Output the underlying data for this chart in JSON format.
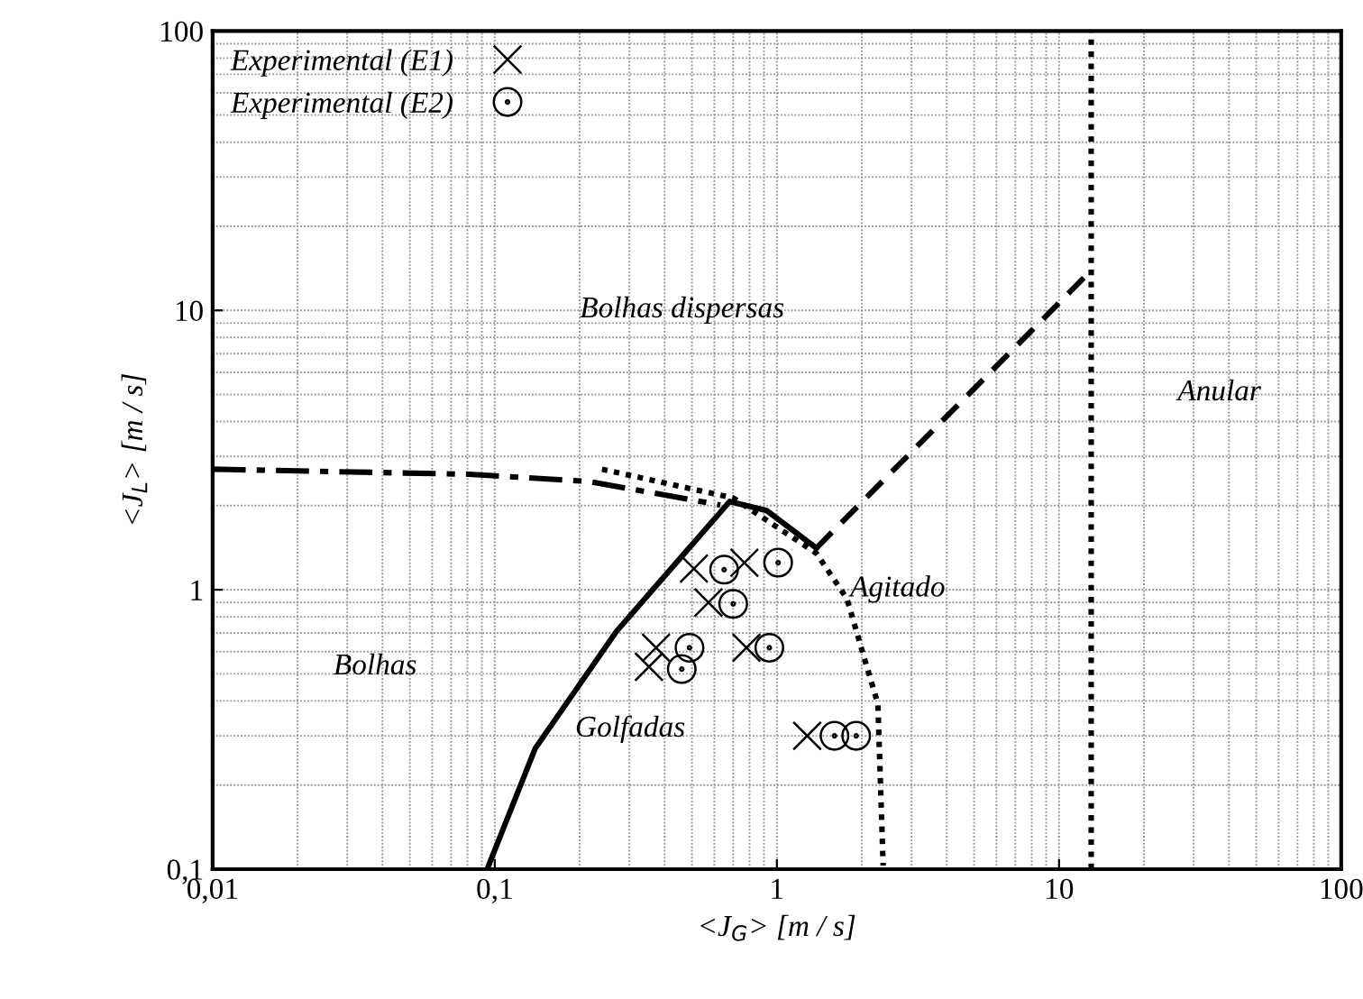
{
  "chart_data": {
    "type": "line",
    "xlabel": "<J$_{G}$> [m / s]",
    "ylabel": "<J$_{L}$> [m / s]",
    "log": "xy",
    "xlim": [
      0.01,
      100
    ],
    "ylim": [
      0.1,
      100
    ],
    "xticks": [
      {
        "value": 0.01,
        "label": "0,01"
      },
      {
        "value": 0.1,
        "label": "0,1"
      },
      1,
      10,
      100
    ],
    "yticks": [
      {
        "value": 0.1,
        "label": "0,1"
      },
      1,
      10,
      100
    ],
    "grid": true,
    "legend": "top left",
    "series": [
      {
        "color": "#000000",
        "line_style": "solid",
        "x": [
          0.094,
          0.139,
          0.27,
          0.68,
          0.92,
          1.38
        ],
        "values": [
          0.1,
          0.27,
          0.71,
          2.07,
          1.92,
          1.41
        ]
      },
      {
        "color": "#000000",
        "line_style": "dashed",
        "x": [
          1.38,
          13
        ],
        "values": [
          1.41,
          13.9
        ]
      },
      {
        "color": "#000000",
        "line_style": "dotted",
        "x": [
          13,
          13
        ],
        "values": [
          0.1,
          100
        ]
      },
      {
        "color": "#000000",
        "line_style": "dashdot",
        "x": [
          0.01,
          0.081,
          0.216,
          0.63
        ],
        "values": [
          2.7,
          2.59,
          2.44,
          2.01
        ]
      },
      {
        "color": "#000000",
        "line_style": "dotted",
        "x": [
          0.24,
          0.7,
          1.38,
          1.77,
          2.0,
          2.28,
          2.38
        ],
        "values": [
          2.7,
          2.13,
          1.35,
          0.93,
          0.61,
          0.39,
          0.103
        ]
      },
      {
        "type": "scatter",
        "name": "Experimental (E1)",
        "color": "#000000",
        "marker": "cross",
        "x": [
          0.508,
          0.767,
          0.572,
          0.373,
          0.352,
          0.78,
          1.28
        ],
        "values": [
          1.19,
          1.25,
          0.9,
          0.62,
          0.53,
          0.62,
          0.3
        ]
      },
      {
        "type": "scatter",
        "name": "Experimental (E2)",
        "color": "#000000",
        "marker": "circle",
        "x": [
          0.65,
          1.01,
          0.7,
          0.49,
          0.46,
          0.94,
          1.6,
          1.91
        ],
        "values": [
          1.18,
          1.25,
          0.89,
          0.62,
          0.52,
          0.62,
          0.3,
          0.3
        ]
      }
    ],
    "annotations": [
      "Bolhas dispersas",
      "Anular",
      "Agitado",
      "Bolhas",
      "Golfadas"
    ]
  }
}
